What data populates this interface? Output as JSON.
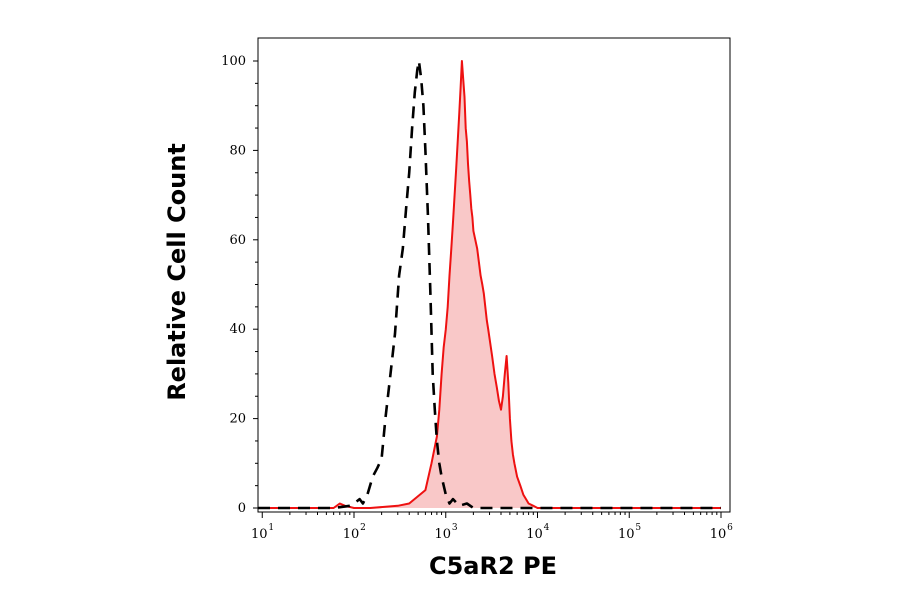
{
  "chart_data": {
    "type": "area",
    "title": "",
    "xlabel": "C5aR2 PE",
    "ylabel": "Relative Cell Count",
    "x_scale": "log",
    "xlim": [
      8,
      1000000
    ],
    "ylim": [
      0,
      100
    ],
    "grid": false,
    "x_ticks": [
      {
        "base": "10",
        "exp": "1",
        "value": 10
      },
      {
        "base": "10",
        "exp": "2",
        "value": 100
      },
      {
        "base": "10",
        "exp": "3",
        "value": 1000
      },
      {
        "base": "10",
        "exp": "4",
        "value": 10000
      },
      {
        "base": "10",
        "exp": "5",
        "value": 100000
      },
      {
        "base": "10",
        "exp": "6",
        "value": 1000000
      }
    ],
    "y_ticks": [
      {
        "label": "0",
        "value": 0
      },
      {
        "label": "20",
        "value": 20
      },
      {
        "label": "40",
        "value": 40
      },
      {
        "label": "60",
        "value": 60
      },
      {
        "label": "80",
        "value": 80
      },
      {
        "label": "100",
        "value": 100
      }
    ],
    "series": [
      {
        "style": "dashed",
        "color": "#000000",
        "fill": "none",
        "x": [
          8,
          60,
          90,
          100,
          115,
          125,
          140,
          160,
          180,
          200,
          220,
          250,
          280,
          310,
          340,
          370,
          400,
          430,
          460,
          490,
          510,
          540,
          570,
          600,
          640,
          680,
          720,
          760,
          800,
          850,
          900,
          1000,
          1100,
          1200,
          1400,
          1700,
          2000,
          3000,
          1000000
        ],
        "y": [
          0,
          0,
          0.5,
          1,
          2,
          1,
          3,
          7,
          9,
          11,
          20,
          30,
          39,
          52,
          58,
          67,
          75,
          85,
          93,
          98,
          100,
          96,
          90,
          80,
          65,
          48,
          30,
          22,
          15,
          10,
          7,
          3,
          1,
          2,
          0.5,
          1,
          0,
          0,
          0
        ]
      },
      {
        "style": "solid",
        "color": "#ee1111",
        "fill": "#f9c8c8",
        "x": [
          8,
          60,
          70,
          80,
          100,
          150,
          300,
          400,
          600,
          700,
          800,
          850,
          900,
          950,
          1000,
          1050,
          1100,
          1150,
          1200,
          1250,
          1300,
          1350,
          1400,
          1450,
          1500,
          1550,
          1600,
          1650,
          1700,
          1750,
          1800,
          1850,
          1900,
          1950,
          2000,
          2100,
          2200,
          2300,
          2400,
          2500,
          2600,
          2700,
          2800,
          2900,
          3000,
          3200,
          3400,
          3600,
          3800,
          4000,
          4200,
          4400,
          4600,
          4800,
          5000,
          5200,
          5400,
          5600,
          6000,
          6500,
          7000,
          7500,
          8000,
          9000,
          10000,
          20000,
          100000,
          1000000
        ],
        "y": [
          0,
          0,
          1,
          0.5,
          0,
          0,
          0.5,
          1,
          4,
          10,
          16,
          22,
          30,
          36,
          40,
          45,
          52,
          58,
          64,
          70,
          76,
          82,
          88,
          94,
          100,
          96,
          92,
          85,
          82,
          77,
          73,
          70,
          67,
          65,
          62,
          60,
          58,
          55,
          52,
          50,
          48,
          45,
          42,
          40,
          38,
          34,
          30,
          27,
          24,
          22,
          25,
          30,
          34,
          28,
          20,
          15,
          12,
          10,
          7,
          5,
          3,
          2,
          1,
          0.5,
          0,
          0,
          0,
          0
        ]
      }
    ]
  }
}
